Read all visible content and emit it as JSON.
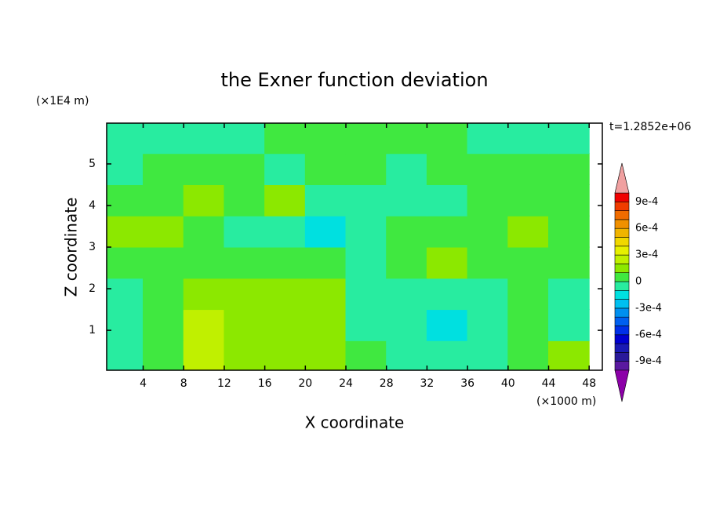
{
  "chart_data": {
    "type": "contour",
    "title": "the Exner function deviation",
    "xlabel": "X coordinate",
    "ylabel": "Z coordinate",
    "xunit": "(×1000 m)",
    "yunit": "(×1E4 m)",
    "time_label": "t=1.2852e+06",
    "xlim": [
      0.4,
      49.3
    ],
    "ylim": [
      0.04,
      5.98
    ],
    "xticks": [
      4,
      8,
      12,
      16,
      20,
      24,
      28,
      32,
      36,
      40,
      44,
      48
    ],
    "yticks": [
      1,
      2,
      3,
      4,
      5
    ],
    "x": [
      2,
      6,
      10,
      14,
      18,
      22,
      26,
      30,
      34,
      38,
      42,
      46
    ],
    "y": [
      0.375,
      1.125,
      1.875,
      2.625,
      3.375,
      4.125,
      4.875,
      5.625
    ],
    "z": [
      [
        -5e-05,
        5e-05,
        0.00025,
        0.00015,
        0.00015,
        0.00015,
        5e-05,
        -5e-05,
        -5e-05,
        -5e-05,
        5e-05,
        0.00015
      ],
      [
        -5e-05,
        5e-05,
        0.00025,
        0.00015,
        0.00015,
        0.00015,
        -5e-05,
        -5e-05,
        -0.00015,
        -5e-05,
        5e-05,
        -5e-05
      ],
      [
        -5e-05,
        5e-05,
        0.00015,
        0.00015,
        0.00015,
        0.00015,
        -5e-05,
        -5e-05,
        -5e-05,
        -5e-05,
        5e-05,
        -5e-05
      ],
      [
        5e-05,
        5e-05,
        5e-05,
        5e-05,
        5e-05,
        5e-05,
        -5e-05,
        5e-05,
        0.00015,
        5e-05,
        5e-05,
        5e-05
      ],
      [
        0.00015,
        0.00015,
        5e-05,
        -5e-05,
        -5e-05,
        -0.00015,
        -5e-05,
        5e-05,
        5e-05,
        5e-05,
        0.00015,
        5e-05
      ],
      [
        5e-05,
        5e-05,
        0.00015,
        5e-05,
        0.00015,
        -5e-05,
        -5e-05,
        -5e-05,
        -5e-05,
        5e-05,
        5e-05,
        5e-05
      ],
      [
        -5e-05,
        5e-05,
        5e-05,
        5e-05,
        -5e-05,
        5e-05,
        5e-05,
        -5e-05,
        5e-05,
        5e-05,
        5e-05,
        5e-05
      ],
      [
        -5e-05,
        -5e-05,
        -5e-05,
        -5e-05,
        5e-05,
        5e-05,
        5e-05,
        5e-05,
        5e-05,
        -5e-05,
        -5e-05,
        -5e-05
      ]
    ],
    "colorbar": {
      "levels": [
        -0.001,
        -0.0009,
        -0.0008,
        -0.0007,
        -0.0006,
        -0.0005,
        -0.0004,
        -0.0003,
        -0.0002,
        -0.0001,
        0,
        0.0001,
        0.0002,
        0.0003,
        0.0004,
        0.0005,
        0.0006,
        0.0007,
        0.0008,
        0.0009,
        0.001
      ],
      "colors": [
        "#5a1aa0",
        "#2a1a9a",
        "#1a1ab4",
        "#0000d0",
        "#0030e8",
        "#0060f0",
        "#0090f0",
        "#00c0f0",
        "#00e0e0",
        "#28eca0",
        "#40e840",
        "#8ce800",
        "#c0f000",
        "#e6f000",
        "#f0d800",
        "#f0b400",
        "#f09000",
        "#f06c00",
        "#f03c00",
        "#f00000"
      ],
      "under_color": "#8c00a8",
      "over_color": "#f0a0a0",
      "ticks": [
        {
          "value": 0.0009,
          "label": "9e-4"
        },
        {
          "value": 0.0006,
          "label": "6e-4"
        },
        {
          "value": 0.0003,
          "label": "3e-4"
        },
        0,
        {
          "value": -0.0003,
          "label": "-3e-4"
        },
        {
          "value": -0.0006,
          "label": "-6e-4"
        },
        {
          "value": -0.0009,
          "label": "-9e-4"
        }
      ]
    }
  }
}
